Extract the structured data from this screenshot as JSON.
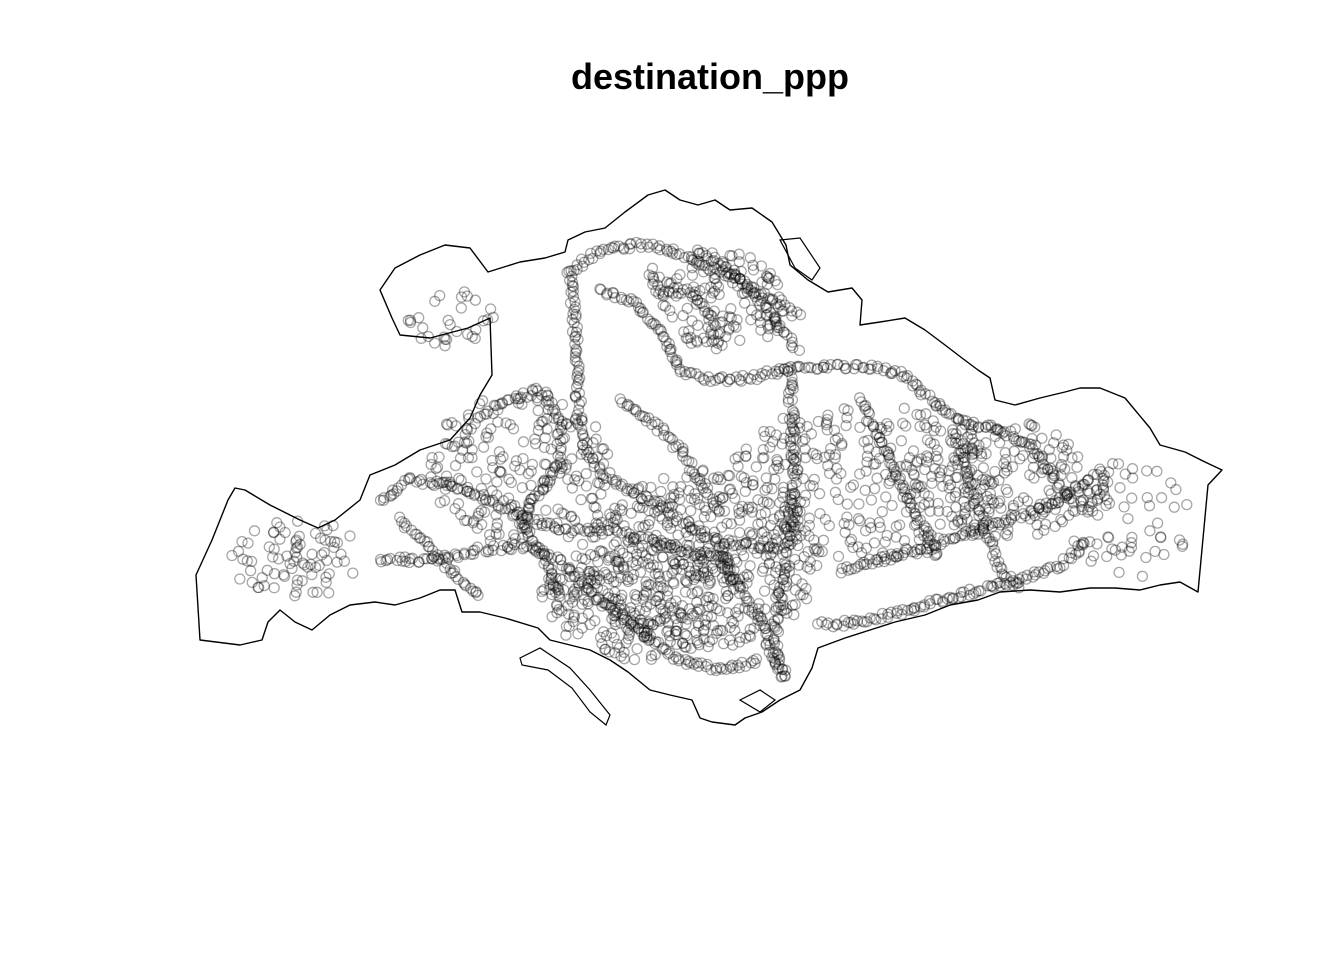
{
  "title": "destination_ppp",
  "colors": {
    "background": "#ffffff",
    "boundary": "#000000",
    "point_stroke": "#000000"
  },
  "point_style": {
    "marker": "open-circle",
    "opacity": 0.35
  }
}
